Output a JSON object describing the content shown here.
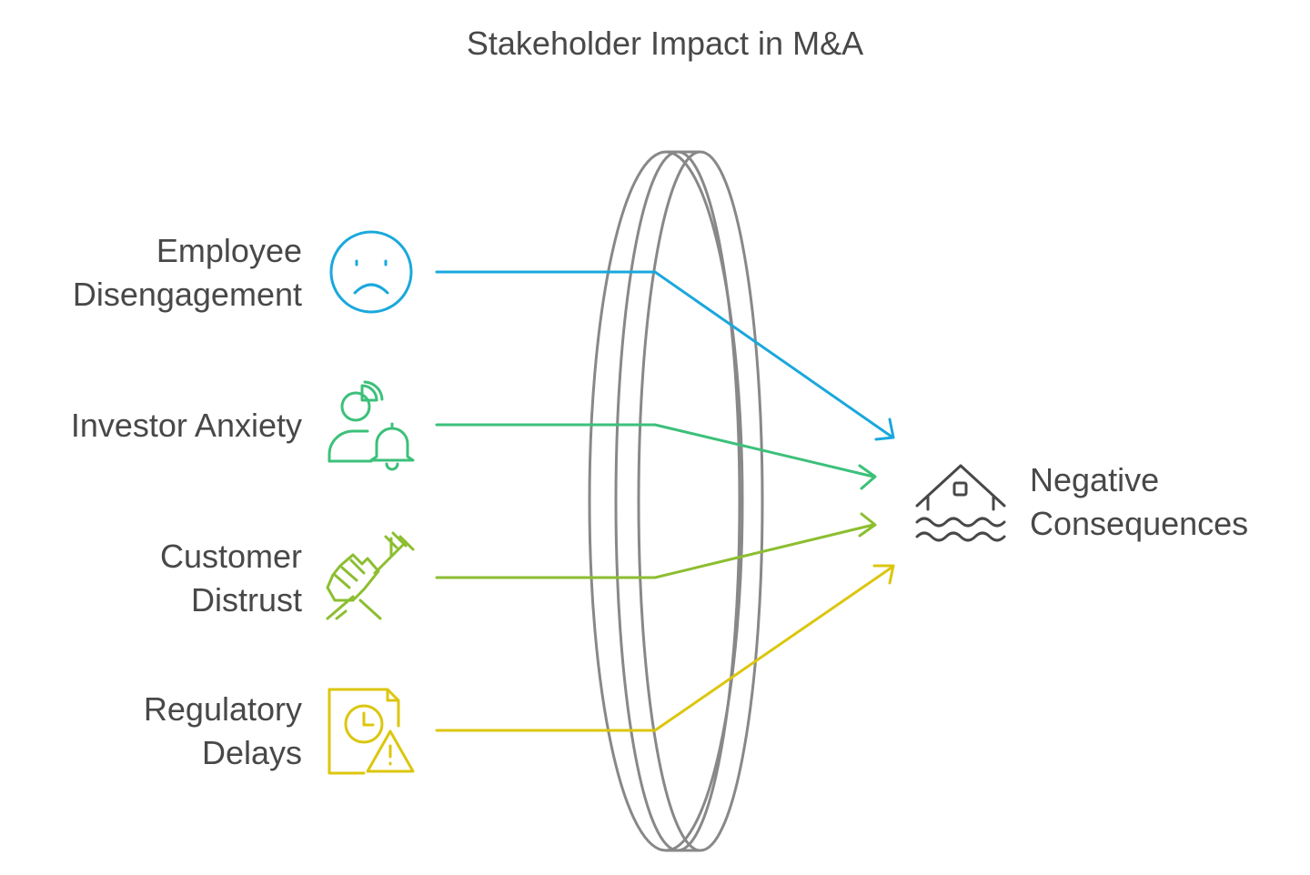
{
  "title": "Stakeholder Impact in M&A",
  "stakeholders": [
    {
      "line1": "Employee",
      "line2": "Disengagement",
      "icon": "sad-face-icon",
      "color": "#1aa8dc"
    },
    {
      "line1": "Investor Anxiety",
      "line2": "",
      "icon": "investor-alert-icon",
      "color": "#3cc07a"
    },
    {
      "line1": "Customer",
      "line2": "Distrust",
      "icon": "fist-fork-icon",
      "color": "#8cbe30"
    },
    {
      "line1": "Regulatory",
      "line2": "Delays",
      "icon": "document-clock-warning-icon",
      "color": "#dcc60e"
    }
  ],
  "outcome": {
    "line1": "Negative",
    "line2": "Consequences",
    "icon": "flooded-house-icon",
    "color": "#484848"
  },
  "lens": {
    "color": "#888888"
  }
}
